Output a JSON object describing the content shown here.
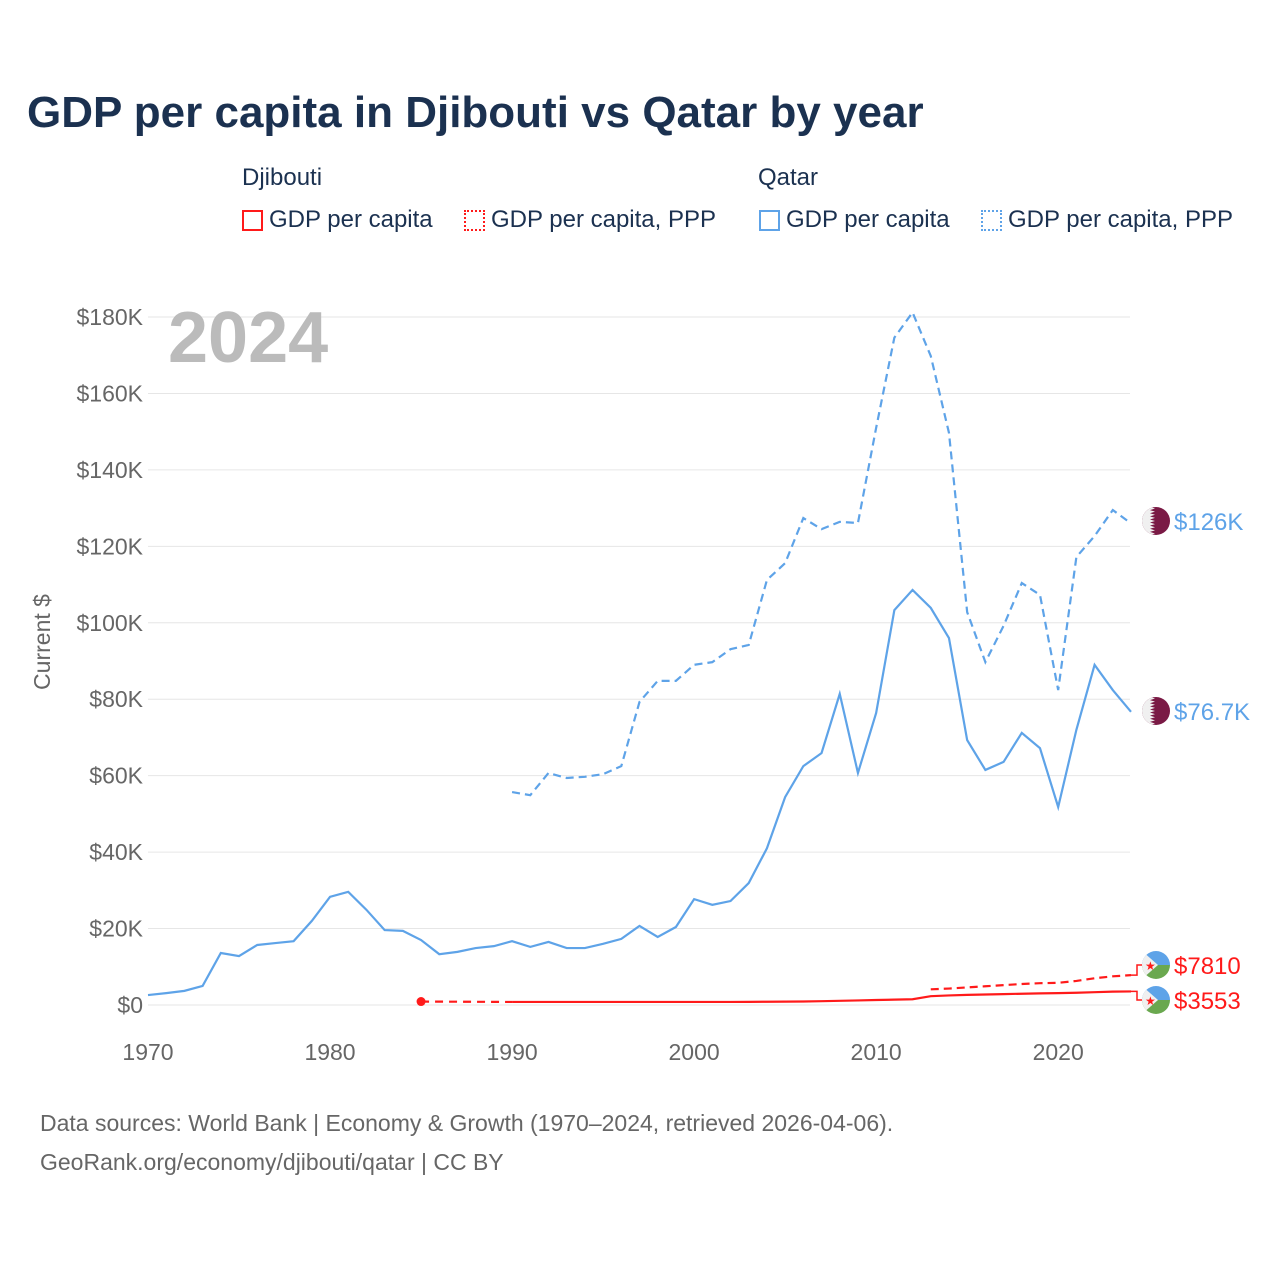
{
  "chart_data": {
    "type": "line",
    "title": "GDP per capita in Djibouti vs Qatar by year",
    "year_label": "2024",
    "ylabel": "Current $",
    "xlabel": "",
    "xlim": [
      1970,
      2024
    ],
    "ylim": [
      0,
      180000
    ],
    "x_ticks": [
      "1970",
      "1980",
      "1990",
      "2000",
      "2010",
      "2020"
    ],
    "y_ticks": [
      "$0",
      "$20K",
      "$40K",
      "$60K",
      "$80K",
      "$100K",
      "$120K",
      "$140K",
      "$160K",
      "$180K"
    ],
    "grid": true,
    "legend": {
      "placement": "top",
      "groups": [
        {
          "name": "Djibouti",
          "items": [
            "GDP per capita",
            "GDP per capita, PPP"
          ]
        },
        {
          "name": "Qatar",
          "items": [
            "GDP per capita",
            "GDP per capita, PPP"
          ]
        }
      ]
    },
    "series": [
      {
        "name": "Qatar GDP per capita",
        "color": "#5ea3e8",
        "dash": false,
        "start": 1970,
        "end_label": "$76.7K",
        "values": [
          2600,
          3100,
          3700,
          5000,
          13600,
          12800,
          15700,
          16200,
          16700,
          22000,
          28300,
          29600,
          24900,
          19600,
          19400,
          17000,
          13300,
          13900,
          14900,
          15400,
          16700,
          15200,
          16500,
          14900,
          14900,
          16000,
          17300,
          20700,
          17800,
          20400,
          27700,
          26200,
          27200,
          31900,
          41000,
          54400,
          62500,
          65900,
          81400,
          60700,
          76400,
          103300,
          108600,
          103900,
          96000,
          69300,
          61500,
          63600,
          71200,
          67200,
          51800,
          72000,
          89000,
          82400,
          76700
        ]
      },
      {
        "name": "Qatar GDP per capita, PPP",
        "color": "#5ea3e8",
        "dash": true,
        "start": 1990,
        "end_label": "$126K",
        "values": [
          55700,
          54900,
          60700,
          59400,
          59700,
          60400,
          62500,
          79300,
          84800,
          84800,
          89000,
          89700,
          93100,
          94200,
          111200,
          115600,
          127400,
          124500,
          126400,
          126100,
          151000,
          174600,
          181200,
          169800,
          149700,
          102800,
          89700,
          99200,
          110400,
          107300,
          82400,
          117200,
          122700,
          129500,
          126000
        ]
      },
      {
        "name": "Djibouti GDP per capita",
        "color": "#ff1a1a",
        "dash": false,
        "start": 1985,
        "end_label": "$3553",
        "values": [
          900,
          null,
          null,
          null,
          null,
          800,
          800,
          800,
          800,
          800,
          800,
          800,
          800,
          800,
          800,
          800,
          800,
          800,
          820,
          850,
          880,
          920,
          1000,
          1100,
          1200,
          1300,
          1400,
          1500,
          2300,
          2500,
          2650,
          2750,
          2850,
          2950,
          3050,
          3100,
          3200,
          3350,
          3500,
          3553
        ]
      },
      {
        "name": "Djibouti GDP per capita, PPP",
        "color": "#ff1a1a",
        "dash": true,
        "start": 2013,
        "end_label": "$7810",
        "values": [
          4100,
          4300,
          4600,
          4900,
          5200,
          5500,
          5700,
          5800,
          6300,
          7000,
          7500,
          7810
        ]
      }
    ]
  },
  "legend_labels": {
    "djibouti": "Djibouti",
    "qatar": "Qatar",
    "gdp": "GDP per capita",
    "ppp": "GDP per capita, PPP"
  },
  "colors": {
    "djibouti": "#ff1a1a",
    "qatar": "#5ea3e8",
    "qatar_flag": "#7a1a45"
  },
  "footer": {
    "line1": "Data sources: World Bank | Economy & Growth (1970–2024, retrieved 2026-04-06).",
    "line2": "GeoRank.org/economy/djibouti/qatar | CC BY"
  }
}
